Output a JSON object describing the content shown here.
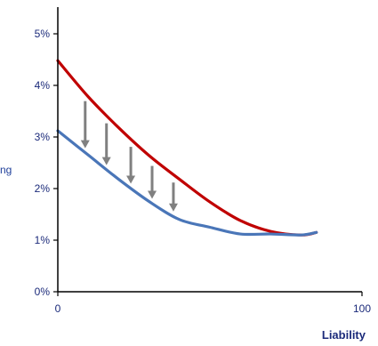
{
  "chart_data": {
    "type": "line",
    "title": "",
    "xlabel": "Liability",
    "ylabel": "ng",
    "xlim": [
      0,
      100
    ],
    "ylim": [
      0,
      5
    ],
    "x_ticks": [
      {
        "value": 0,
        "label": "0"
      },
      {
        "value": 100,
        "label": "100"
      }
    ],
    "y_ticks": [
      {
        "value": 0,
        "label": "0%"
      },
      {
        "value": 1,
        "label": "1%"
      },
      {
        "value": 2,
        "label": "2%"
      },
      {
        "value": 3,
        "label": "3%"
      },
      {
        "value": 4,
        "label": "4%"
      },
      {
        "value": 5,
        "label": "5%"
      }
    ],
    "grid": false,
    "series": [
      {
        "color": "#c00000",
        "x": [
          0,
          10,
          20,
          30,
          40,
          50,
          60,
          70,
          80,
          85
        ],
        "y": [
          4.48,
          3.78,
          3.18,
          2.64,
          2.18,
          1.74,
          1.38,
          1.17,
          1.1,
          1.15
        ]
      },
      {
        "color": "#4a76b8",
        "x": [
          0,
          10,
          20,
          30,
          40,
          50,
          60,
          70,
          80,
          85
        ],
        "y": [
          3.12,
          2.65,
          2.18,
          1.75,
          1.4,
          1.25,
          1.12,
          1.12,
          1.1,
          1.15
        ]
      }
    ],
    "arrows": {
      "color": "#808080",
      "x": [
        9,
        16,
        24,
        31,
        38
      ]
    }
  }
}
